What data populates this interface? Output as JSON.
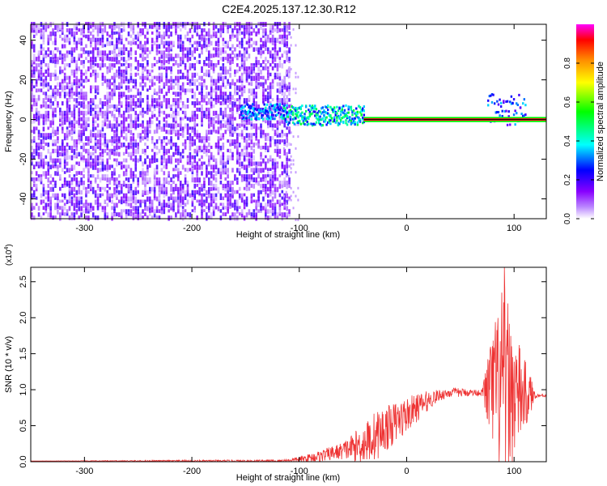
{
  "page_title": "C2E4.2025.137.12.30.R12",
  "chart_data": [
    {
      "type": "heatmap",
      "title": "C2E4.2025.137.12.30.R12",
      "xlabel": "Height of straight line (km)",
      "ylabel": "Frequency (Hz)",
      "xlim": [
        -350,
        130
      ],
      "ylim": [
        -50,
        48
      ],
      "xticks": [
        -300,
        -200,
        -100,
        0,
        100
      ],
      "yticks": [
        -40,
        -20,
        0,
        20,
        40
      ],
      "colorbar": {
        "label": "Normalized spectral amplitude",
        "range": [
          0,
          1
        ],
        "ticks": [
          "0.0",
          "0.2",
          "0.4",
          "0.6",
          "0.8"
        ],
        "colors": [
          "#ffffff",
          "#8800ff",
          "#0000ff",
          "#00ffff",
          "#00ff00",
          "#ffff00",
          "#ff8800",
          "#ff0000",
          "#ff00ff"
        ]
      },
      "regions": [
        {
          "x_range": [
            -350,
            -110
          ],
          "freq_range": [
            -50,
            48
          ],
          "level": 0.12,
          "description_of": "broadband noise"
        },
        {
          "x_range": [
            -155,
            -115
          ],
          "freq_center": 4,
          "freq_width": 8,
          "level": 0.35
        },
        {
          "x_range": [
            -115,
            -40
          ],
          "freq_center": 2,
          "freq_width": 10,
          "level": 0.45
        },
        {
          "x_range": [
            -40,
            130
          ],
          "freq_center": 0,
          "freq_width": 2,
          "level": 0.95
        },
        {
          "x_range": [
            75,
            110
          ],
          "freq_center": 5,
          "freq_width": 16,
          "level": 0.3
        }
      ]
    },
    {
      "type": "line",
      "xlabel": "Height of straight line (km)",
      "ylabel": "SNR (10 * v/v)",
      "scale_note": "(x10^4)",
      "xlim": [
        -350,
        130
      ],
      "ylim": [
        0,
        2.7
      ],
      "xticks": [
        -300,
        -200,
        -100,
        0,
        100
      ],
      "yticks": [
        "0.0",
        "0.5",
        "1.0",
        "1.5",
        "2.0",
        "2.5"
      ],
      "series": [
        {
          "color": "#ee3333",
          "envelope": [
            {
              "x": -350,
              "y": 0.01
            },
            {
              "x": -120,
              "y": 0.01
            },
            {
              "x": -100,
              "y": 0.03
            },
            {
              "x": -80,
              "y": 0.08
            },
            {
              "x": -60,
              "y": 0.15
            },
            {
              "x": -50,
              "y": 0.2
            },
            {
              "x": -40,
              "y": 0.25
            },
            {
              "x": -30,
              "y": 0.35
            },
            {
              "x": -20,
              "y": 0.45
            },
            {
              "x": -10,
              "y": 0.55
            },
            {
              "x": 0,
              "y": 0.65
            },
            {
              "x": 10,
              "y": 0.75
            },
            {
              "x": 20,
              "y": 0.85
            },
            {
              "x": 30,
              "y": 0.92
            },
            {
              "x": 40,
              "y": 0.96
            },
            {
              "x": 50,
              "y": 0.96
            },
            {
              "x": 70,
              "y": 0.96
            },
            {
              "x": 80,
              "y": 1.0
            },
            {
              "x": 90,
              "y": 1.0
            },
            {
              "x": 100,
              "y": 0.95
            },
            {
              "x": 110,
              "y": 0.92
            },
            {
              "x": 130,
              "y": 0.92
            }
          ],
          "noise_amplitude": [
            {
              "x": -350,
              "y": 0.0
            },
            {
              "x": -110,
              "y": 0.02
            },
            {
              "x": -60,
              "y": 0.12
            },
            {
              "x": -30,
              "y": 0.35
            },
            {
              "x": 0,
              "y": 0.25
            },
            {
              "x": 30,
              "y": 0.08
            },
            {
              "x": 70,
              "y": 0.04
            },
            {
              "x": 75,
              "y": 0.5
            },
            {
              "x": 90,
              "y": 1.5
            },
            {
              "x": 100,
              "y": 0.9
            },
            {
              "x": 115,
              "y": 0.3
            },
            {
              "x": 120,
              "y": 0.03
            },
            {
              "x": 130,
              "y": 0.02
            }
          ],
          "peak": {
            "x": 91,
            "y": 2.7
          }
        }
      ]
    }
  ]
}
